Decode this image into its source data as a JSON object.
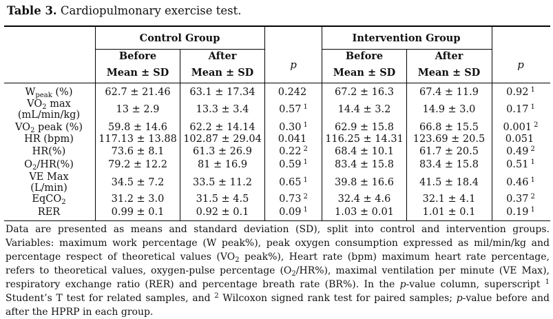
{
  "caption": {
    "label": "Table 3.",
    "text": "Cardiopulmonary exercise test."
  },
  "groups": {
    "control": "Control Group",
    "intervention": "Intervention Group"
  },
  "timepoints": {
    "before": "Before",
    "after": "After"
  },
  "stat": "Mean ± SD",
  "p_label": "p",
  "rows": [
    {
      "cb": "62.7 ± 21.46",
      "ca": "63.1 ± 17.34",
      "cp": "0.242",
      "cps": "",
      "ib": "67.2 ± 16.3",
      "ia": "67.4 ± 11.9",
      "ip": "0.92",
      "ips": "1"
    },
    {
      "cb": "13 ± 2.9",
      "ca": "13.3 ± 3.4",
      "cp": "0.57",
      "cps": "1",
      "ib": "14.4 ± 3.2",
      "ia": "14.9 ± 3.0",
      "ip": "0.17",
      "ips": "1"
    },
    {
      "cb": "59.8 ± 14.6",
      "ca": "62.2 ± 14.14",
      "cp": "0.30",
      "cps": "1",
      "ib": "62.9 ± 15.8",
      "ia": "66.8 ± 15.5",
      "ip": "0.001",
      "ips": "2"
    },
    {
      "cb": "117.13 ± 13.88",
      "ca": "102.87 ± 29.04",
      "cp": "0.041",
      "cps": "",
      "ib": "116.25 ± 14.31",
      "ia": "123.69 ± 20.5",
      "ip": "0.051",
      "ips": ""
    },
    {
      "cb": "73.6 ± 8.1",
      "ca": "61.3 ± 26.9",
      "cp": "0.22",
      "cps": "2",
      "ib": "68.4 ± 10.1",
      "ia": "61.7 ± 20.5",
      "ip": "0.49",
      "ips": "2"
    },
    {
      "cb": "79.2 ± 12.2",
      "ca": "81 ± 16.9",
      "cp": "0.59",
      "cps": "1",
      "ib": "83.4 ± 15.8",
      "ia": "83.4 ± 15.8",
      "ip": "0.51",
      "ips": "1"
    },
    {
      "cb": "34.5 ± 7.2",
      "ca": "33.5 ± 11.2",
      "cp": "0.65",
      "cps": "1",
      "ib": "39.8 ± 16.6",
      "ia": "41.5 ± 18.4",
      "ip": "0.46",
      "ips": "1"
    },
    {
      "cb": "31.2 ± 3.0",
      "ca": "31.5 ± 4.5",
      "cp": "0.73",
      "cps": "2",
      "ib": "32.4 ± 4.6",
      "ia": "32.1 ± 4.1",
      "ip": "0.37",
      "ips": "2"
    },
    {
      "cb": "0.99 ± 0.1",
      "ca": "0.92 ± 0.1",
      "cp": "0.09",
      "cps": "1",
      "ib": "1.03 ± 0.01",
      "ia": "1.01 ± 0.1",
      "ip": "0.19",
      "ips": "1"
    }
  ],
  "row_labels": {
    "w_peak": {
      "main": "W",
      "sub": "peak",
      "tail": "(%)"
    },
    "vo2max": {
      "line1_a": "VO",
      "line1_sub": "2",
      "line1_b": "max",
      "line2": "(mL/min/kg)"
    },
    "vo2peak": {
      "a": "VO",
      "sub": "2",
      "b": "peak (%)"
    },
    "hr_bpm": "HR (bpm)",
    "hr_pct": "HR(%)",
    "o2hr": {
      "a": "O",
      "sub": "2",
      "b": "/HR(%)"
    },
    "ve_max": {
      "line1": "VE Max",
      "line2": "(L/min)"
    },
    "eqco2": {
      "a": "EqCO",
      "sub": "2"
    },
    "rer": "RER"
  },
  "footnote": {
    "s1": "Data are presented as means and standard deviation (SD), split into control and intervention groups. Variables: maximum work percentage (W peak%), peak oxygen consumption expressed as mil/min/kg and percentage respect of theoretical values (VO",
    "s1_sub": "2",
    "s2": " peak%), Heart rate (bpm) maximum heart rate percentage, refers to theoretical values, oxygen-pulse percentage (O",
    "s2_sub": "2",
    "s3": "/HR%), maximal ventilation per minute (VE Max), respiratory exchange ratio (RER) and percentage breath rate (BR%). In the ",
    "p1": "p",
    "s4": "-value column, superscript ",
    "sup1": "1",
    "s5": " Student’s T test for related samples, and ",
    "sup2": "2",
    "s6": " Wilcoxon signed rank test for paired samples; ",
    "p2": "p",
    "s7": "-value before and after the HPRP in each group."
  }
}
